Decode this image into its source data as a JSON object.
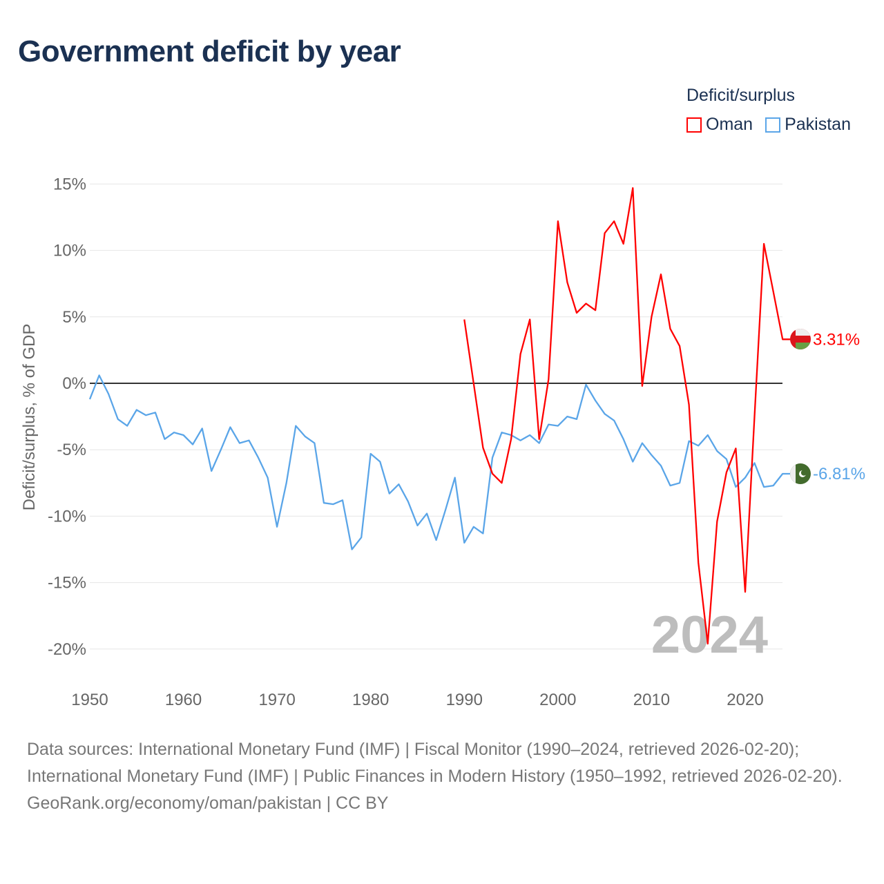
{
  "title": "Government deficit by year",
  "legend": {
    "title": "Deficit/surplus",
    "items": [
      {
        "label": "Oman",
        "color": "#ff0000"
      },
      {
        "label": "Pakistan",
        "color": "#5aa5e8"
      }
    ]
  },
  "chart_data": {
    "type": "line",
    "title": "Government deficit by year",
    "xlabel": "",
    "ylabel": "Deficit/surplus, % of GDP",
    "xlim": [
      1950,
      2024
    ],
    "ylim": [
      -20,
      15
    ],
    "x_ticks": [
      "1950",
      "1960",
      "1970",
      "1980",
      "1990",
      "2000",
      "2010",
      "2020"
    ],
    "y_ticks": [
      {
        "v": 15,
        "label": "15%"
      },
      {
        "v": 10,
        "label": "10%"
      },
      {
        "v": 5,
        "label": "5%"
      },
      {
        "v": 0,
        "label": "0%"
      },
      {
        "v": -5,
        "label": "-5%"
      },
      {
        "v": -10,
        "label": "-10%"
      },
      {
        "v": -15,
        "label": "-15%"
      },
      {
        "v": -20,
        "label": "-20%"
      }
    ],
    "grid": true,
    "watermark_year": "2024",
    "series": [
      {
        "name": "Oman",
        "color": "#ff0000",
        "end_label": "3.31%",
        "start_year": 1990,
        "values": [
          4.8,
          0.0,
          -4.85,
          -6.8,
          -7.5,
          -4.2,
          2.2,
          4.8,
          -4.2,
          0.3,
          12.2,
          7.6,
          5.3,
          6.0,
          5.5,
          11.3,
          12.2,
          10.5,
          14.7,
          -0.2,
          5.0,
          8.2,
          4.1,
          2.8,
          -1.6,
          -13.5,
          -19.6,
          -10.4,
          -6.7,
          -4.9,
          -15.7,
          -2.5,
          10.5,
          6.9,
          3.31
        ]
      },
      {
        "name": "Pakistan",
        "color": "#5aa5e8",
        "end_label": "-6.81%",
        "start_year": 1950,
        "values": [
          -1.2,
          0.6,
          -0.8,
          -2.7,
          -3.2,
          -2.0,
          -2.4,
          -2.2,
          -4.2,
          -3.7,
          -3.9,
          -4.6,
          -3.4,
          -6.6,
          -5.0,
          -3.3,
          -4.5,
          -4.3,
          -5.6,
          -7.1,
          -10.8,
          -7.5,
          -3.2,
          -4.0,
          -4.5,
          -9.0,
          -9.1,
          -8.8,
          -12.5,
          -11.6,
          -5.3,
          -5.9,
          -8.3,
          -7.6,
          -8.9,
          -10.7,
          -9.8,
          -11.8,
          -9.5,
          -7.1,
          -12.0,
          -10.8,
          -11.3,
          -5.6,
          -3.7,
          -3.9,
          -4.3,
          -3.9,
          -4.5,
          -3.1,
          -3.2,
          -2.5,
          -2.7,
          -0.1,
          -1.3,
          -2.3,
          -2.8,
          -4.2,
          -5.9,
          -4.5,
          -5.4,
          -6.2,
          -7.7,
          -7.5,
          -4.35,
          -4.7,
          -3.9,
          -5.1,
          -5.7,
          -7.8,
          -7.1,
          -6.0,
          -7.8,
          -7.7,
          -6.81
        ]
      }
    ]
  },
  "footer": {
    "sources": "Data sources: International Monetary Fund (IMF) | Fiscal Monitor (1990–2024, retrieved 2026-02-20); International Monetary Fund (IMF) | Public Finances in Modern History (1950–1992, retrieved 2026-02-20).",
    "credit": "GeoRank.org/economy/oman/pakistan | CC BY"
  }
}
